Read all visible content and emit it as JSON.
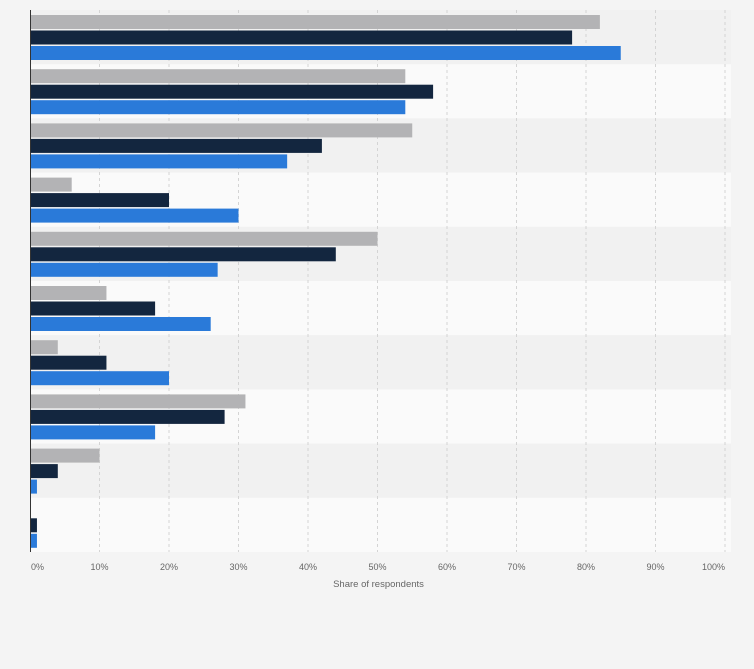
{
  "chart_data": {
    "type": "bar",
    "orientation": "horizontal",
    "xlabel": "Share of respondents",
    "xlim": [
      0,
      100
    ],
    "x_tick_labels": [
      "0%",
      "10%",
      "20%",
      "30%",
      "40%",
      "50%",
      "60%",
      "70%",
      "80%",
      "90%",
      "100%"
    ],
    "grid": true,
    "legend": "none",
    "series": [
      {
        "color": "#b3b3b5",
        "values": [
          82,
          54,
          55,
          6,
          50,
          11,
          4,
          31,
          10,
          0
        ]
      },
      {
        "color": "#13263f",
        "values": [
          78,
          58,
          42,
          20,
          44,
          18,
          11,
          28,
          4,
          1
        ]
      },
      {
        "color": "#2a7ad9",
        "values": [
          85,
          54,
          37,
          30,
          27,
          26,
          20,
          18,
          1,
          1
        ]
      }
    ]
  },
  "colors": {
    "background": "#f4f4f4",
    "band_dark": "#f1f1f1",
    "band_light": "#fafafa"
  }
}
